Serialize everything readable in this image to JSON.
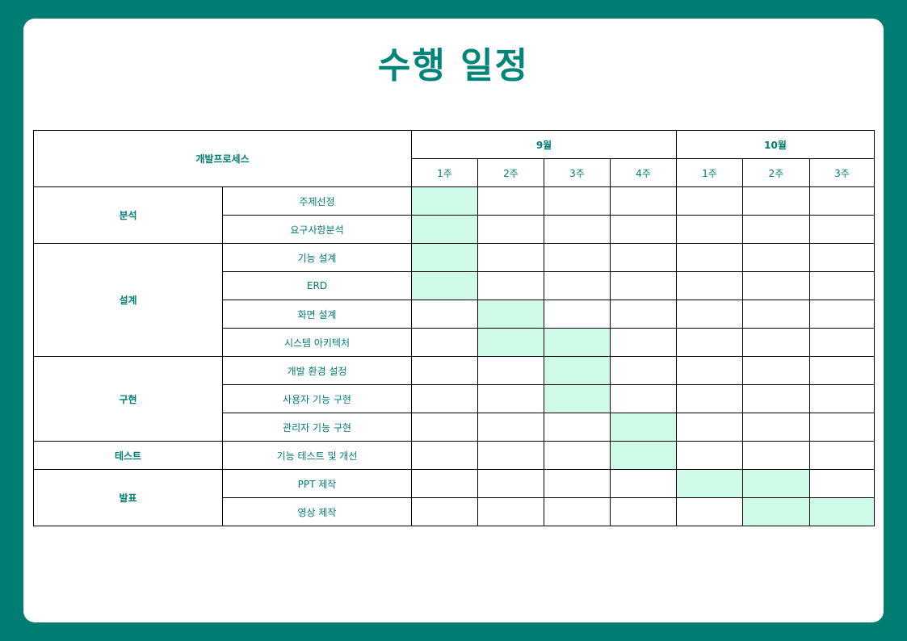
{
  "title": "수행 일정",
  "table": {
    "process_header": "개발프로세스",
    "months": [
      {
        "label": "9월",
        "span": 4
      },
      {
        "label": "10월",
        "span": 3
      }
    ],
    "weeks": [
      "1주",
      "2주",
      "3주",
      "4주",
      "1주",
      "2주",
      "3주"
    ],
    "phases": [
      {
        "name": "분석",
        "tasks": [
          {
            "name": "주제선정",
            "weeks": [
              1,
              0,
              0,
              0,
              0,
              0,
              0
            ]
          },
          {
            "name": "요구사항분석",
            "weeks": [
              1,
              0,
              0,
              0,
              0,
              0,
              0
            ]
          }
        ]
      },
      {
        "name": "설계",
        "tasks": [
          {
            "name": "기능 설계",
            "weeks": [
              1,
              0,
              0,
              0,
              0,
              0,
              0
            ]
          },
          {
            "name": "ERD",
            "weeks": [
              1,
              0,
              0,
              0,
              0,
              0,
              0
            ]
          },
          {
            "name": "화면 설계",
            "weeks": [
              0,
              1,
              0,
              0,
              0,
              0,
              0
            ]
          },
          {
            "name": "시스템 아키텍처",
            "weeks": [
              0,
              1,
              1,
              0,
              0,
              0,
              0
            ]
          }
        ]
      },
      {
        "name": "구현",
        "tasks": [
          {
            "name": "개발 환경 설정",
            "weeks": [
              0,
              0,
              1,
              0,
              0,
              0,
              0
            ]
          },
          {
            "name": "사용자 기능 구현",
            "weeks": [
              0,
              0,
              1,
              0,
              0,
              0,
              0
            ]
          },
          {
            "name": "관리자 기능 구현",
            "weeks": [
              0,
              0,
              0,
              1,
              0,
              0,
              0
            ]
          }
        ]
      },
      {
        "name": "테스트",
        "tasks": [
          {
            "name": "기능 테스트 및 개선",
            "weeks": [
              0,
              0,
              0,
              1,
              0,
              0,
              0
            ]
          }
        ]
      },
      {
        "name": "발표",
        "tasks": [
          {
            "name": "PPT 제작",
            "weeks": [
              0,
              0,
              0,
              0,
              1,
              1,
              0
            ]
          },
          {
            "name": "영상 제작",
            "weeks": [
              0,
              0,
              0,
              0,
              0,
              1,
              1
            ]
          }
        ]
      }
    ],
    "colors": {
      "filled": "#cdfbe8",
      "text": "#007d72",
      "background": "#007d72"
    }
  }
}
